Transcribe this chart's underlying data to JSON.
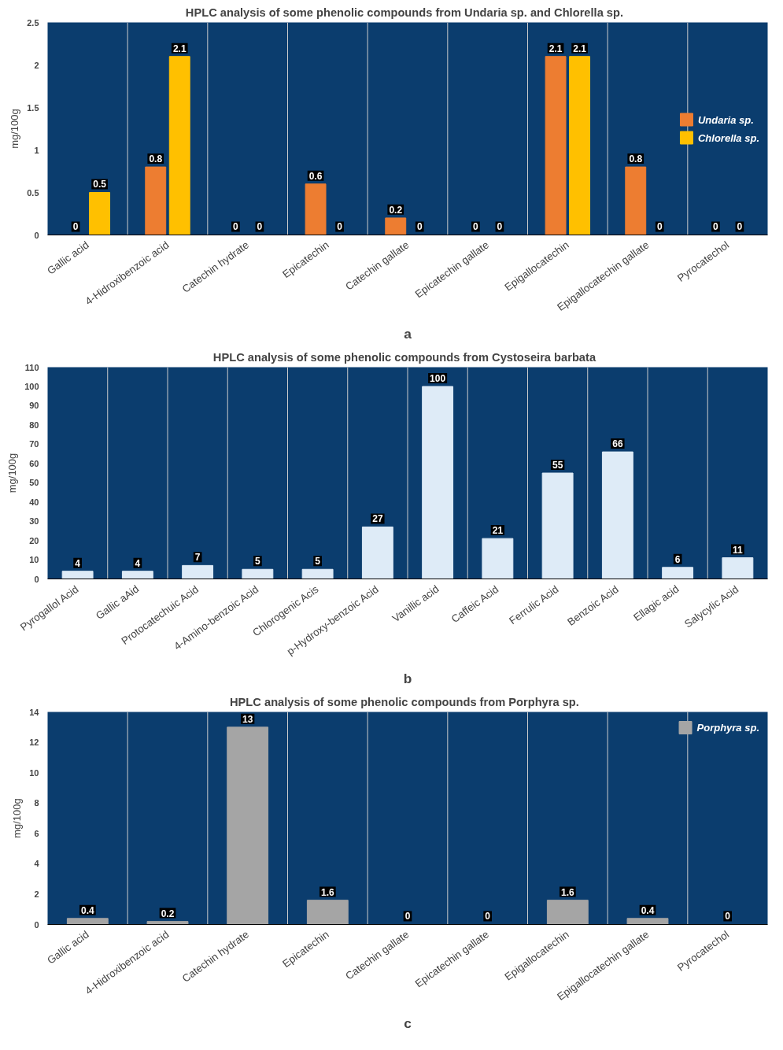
{
  "chart_data": [
    {
      "type": "bar",
      "title": "HPLC analysis  of some phenolic compounds from  Undaria sp. and Chlorella sp.",
      "ylabel": "mg/100g",
      "categories": [
        "Gallic acid",
        "4-Hidroxibenzoic acid",
        "Catechin hydrate",
        "Epicatechin",
        "Catechin gallate",
        "Epicatechin gallate",
        "Epigallocatechin",
        "Epigallocatechin gallate",
        "Pyrocatechol"
      ],
      "series": [
        {
          "name": "Undaria sp.",
          "color": "#ed7d31",
          "values": [
            0,
            0.8,
            0,
            0.6,
            0.2,
            0,
            2.1,
            0.8,
            0
          ]
        },
        {
          "name": "Chlorella sp.",
          "color": "#ffc000",
          "values": [
            0.5,
            2.1,
            0,
            0,
            0,
            0,
            2.1,
            0,
            0
          ]
        }
      ],
      "ylim": [
        0,
        2.5
      ],
      "yticks": [
        0,
        0.5,
        1,
        1.5,
        2,
        2.5
      ],
      "grid": "x",
      "legend": "right",
      "data_labels": true,
      "annotations": [
        "a"
      ]
    },
    {
      "type": "bar",
      "title": "HPLC analysis  of some phenolic compounds from  Cystoseira barbata",
      "ylabel": "mg/100g",
      "categories": [
        "Pyrogallol Acid",
        "Gallic aAid",
        "Protocatechuic Acid",
        "4-Amino-benzoic Acid",
        "Chlorogenic Acis",
        "p-Hydroxy-benzoic Acid",
        "Vanillic acid",
        "Caffeic Acid",
        "Ferrulic Acid",
        "Benzoic Acid",
        "Ellagic acid",
        "Salycylic Acid"
      ],
      "series": [
        {
          "color": "#deebf7",
          "values": [
            4,
            4,
            7,
            5,
            5,
            27,
            100,
            21,
            55,
            66,
            6,
            11
          ]
        }
      ],
      "ylim": [
        0,
        110
      ],
      "yticks": [
        0,
        10,
        20,
        30,
        40,
        50,
        60,
        70,
        80,
        90,
        100,
        110
      ],
      "grid": "x",
      "data_labels": true,
      "annotations": [
        "b"
      ]
    },
    {
      "type": "bar",
      "title": "HPLC analysis  of some phenolic compounds from  Porphyra sp.",
      "ylabel": "mg/100g",
      "categories": [
        "Gallic acid",
        "4-Hidroxibenzoic acid",
        "Catechin hydrate",
        "Epicatechin",
        "Catechin gallate",
        "Epicatechin gallate",
        "Epigallocatechin",
        "Epigallocatechin gallate",
        "Pyrocatechol"
      ],
      "series": [
        {
          "name": "Porphyra sp.",
          "color": "#a5a5a5",
          "values": [
            0.4,
            0.2,
            13,
            1.6,
            0,
            0,
            1.6,
            0.4,
            0
          ]
        }
      ],
      "ylim": [
        0,
        14
      ],
      "yticks": [
        0,
        2,
        4,
        6,
        8,
        10,
        12,
        14
      ],
      "grid": "x",
      "legend": "top right",
      "data_labels": true,
      "annotations": [
        "c"
      ]
    }
  ]
}
